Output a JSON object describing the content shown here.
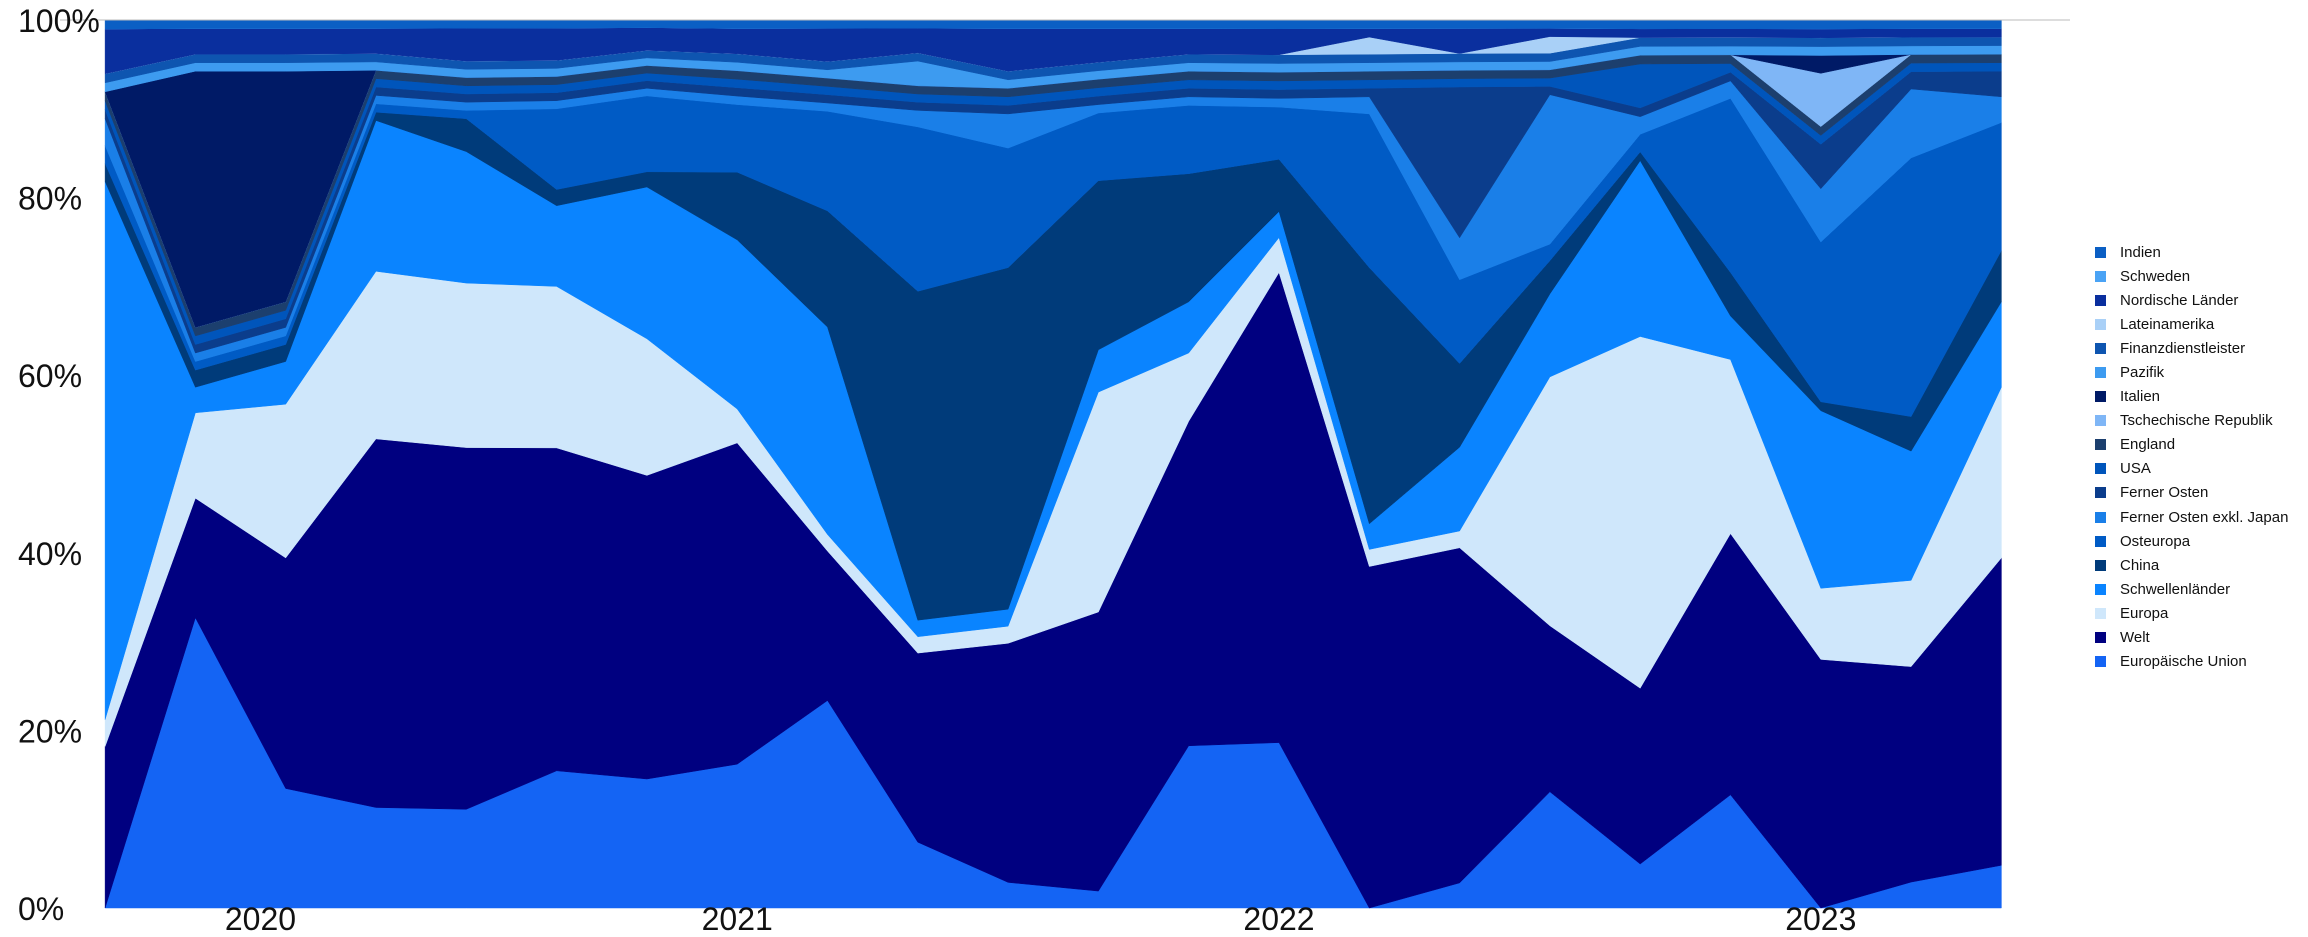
{
  "chart_data": {
    "type": "area",
    "stacked": true,
    "normalized": true,
    "x_ticks": [
      "2020",
      "2021",
      "2022",
      "2023"
    ],
    "y_ticks": [
      "0%",
      "20%",
      "40%",
      "60%",
      "80%",
      "100%"
    ],
    "ylim": [
      0,
      100
    ],
    "grid": false,
    "legend_position": "right",
    "x": [
      "2019-11",
      "2020-01",
      "2020-03",
      "2020-05",
      "2020-07",
      "2020-09",
      "2020-11",
      "2021-01",
      "2021-03",
      "2021-05",
      "2021-07",
      "2021-09",
      "2021-11",
      "2022-01",
      "2022-03",
      "2022-05",
      "2022-07",
      "2022-09",
      "2022-11",
      "2023-01",
      "2023-03",
      "2023-05"
    ],
    "series": [
      {
        "name": "Europäische Union",
        "color": "#1464f4",
        "values": [
          0,
          34,
          14,
          12,
          12,
          17,
          17,
          17,
          25,
          8,
          3,
          2,
          19,
          19,
          0,
          3,
          14,
          5,
          13,
          0,
          3,
          5
        ]
      },
      {
        "name": "Welt",
        "color": "#000080",
        "values": [
          18,
          14,
          27,
          44,
          44,
          40,
          40,
          38,
          18,
          23,
          28,
          33,
          38,
          54,
          40,
          40,
          20,
          20,
          30,
          28,
          25,
          36
        ]
      },
      {
        "name": "Europa",
        "color": "#cfe7fb",
        "values": [
          3,
          10,
          18,
          20,
          20,
          20,
          18,
          4,
          2,
          2,
          2,
          26,
          8,
          4,
          2,
          2,
          30,
          40,
          20,
          8,
          10,
          20
        ]
      },
      {
        "name": "Schwellenländer",
        "color": "#0a84ff",
        "values": [
          60,
          3,
          5,
          18,
          16,
          10,
          20,
          20,
          25,
          2,
          2,
          5,
          6,
          3,
          3,
          10,
          10,
          20,
          5,
          20,
          15,
          10
        ]
      },
      {
        "name": "China",
        "color": "#003b7a",
        "values": [
          2,
          2,
          2,
          1,
          4,
          2,
          2,
          8,
          14,
          40,
          40,
          20,
          15,
          6,
          30,
          10,
          4,
          1,
          5,
          1,
          4,
          6
        ]
      },
      {
        "name": "Osteuropa",
        "color": "#005bc5",
        "values": [
          2,
          1,
          1,
          1,
          1,
          10,
          10,
          8,
          12,
          20,
          14,
          8,
          8,
          6,
          18,
          10,
          2,
          2,
          20,
          18,
          30,
          15
        ]
      },
      {
        "name": "Ferner Osten exkl. Japan",
        "color": "#1a7fe8",
        "values": [
          3,
          1,
          1,
          1,
          1,
          1,
          1,
          1,
          1,
          2,
          4,
          1,
          1,
          1,
          2,
          5,
          18,
          2,
          2,
          6,
          8,
          3
        ]
      },
      {
        "name": "Ferner Osten",
        "color": "#0b3d8c",
        "values": [
          1,
          1,
          1,
          1,
          1,
          1,
          1,
          1,
          1,
          1,
          1,
          1,
          1,
          1,
          1,
          18,
          1,
          1,
          1,
          5,
          2,
          3
        ]
      },
      {
        "name": "USA",
        "color": "#0055bb",
        "values": [
          1,
          1,
          1,
          1,
          1,
          1,
          1,
          1,
          1,
          1,
          1,
          1,
          1,
          1,
          1,
          1,
          1,
          5,
          1,
          1,
          1,
          1
        ]
      },
      {
        "name": "England",
        "color": "#1c3f6e",
        "values": [
          1,
          1,
          1,
          1,
          1,
          1,
          1,
          1,
          1,
          1,
          1,
          1,
          1,
          1,
          1,
          1,
          1,
          1,
          1,
          1,
          1,
          1
        ]
      },
      {
        "name": "Tschechische Republik",
        "color": "#7fb6f6",
        "values": [
          0,
          0,
          0,
          0,
          0,
          0,
          0,
          0,
          0,
          0,
          0,
          0,
          0,
          0,
          0,
          0,
          0,
          0,
          0,
          6,
          0,
          0
        ]
      },
      {
        "name": "Italien",
        "color": "#001a66",
        "values": [
          0,
          30,
          27,
          0,
          0,
          0,
          0,
          0,
          0,
          0,
          0,
          0,
          0,
          0,
          0,
          0,
          0,
          0,
          0,
          2,
          0,
          0
        ]
      },
      {
        "name": "Pazifik",
        "color": "#3d9bf0",
        "values": [
          1,
          1,
          1,
          1,
          1,
          1,
          1,
          1,
          1,
          3,
          1,
          1,
          1,
          1,
          1,
          1,
          1,
          1,
          1,
          1,
          1,
          1
        ]
      },
      {
        "name": "Finanzdienstleister",
        "color": "#0e55b0",
        "values": [
          1,
          1,
          1,
          1,
          1,
          1,
          1,
          1,
          1,
          1,
          1,
          1,
          1,
          1,
          1,
          1,
          1,
          1,
          1,
          1,
          1,
          1
        ]
      },
      {
        "name": "Lateinamerika",
        "color": "#a9d0f7",
        "values": [
          0,
          0,
          0,
          0,
          0,
          0,
          0,
          0,
          0,
          0,
          0,
          0,
          0,
          0,
          2,
          0,
          2,
          0,
          0,
          0,
          0,
          0
        ]
      },
      {
        "name": "Nordische Länder",
        "color": "#0a2f9e",
        "values": [
          5,
          3,
          3,
          3,
          4,
          4,
          3,
          3,
          4,
          3,
          5,
          4,
          3,
          3,
          1,
          3,
          1,
          1,
          1,
          1,
          1,
          1
        ]
      },
      {
        "name": "Schweden",
        "color": "#4aa3f5",
        "values": [
          0,
          0,
          0,
          0,
          0,
          0,
          0,
          0,
          0,
          0,
          0,
          0,
          0,
          0,
          0,
          0,
          0,
          0,
          0,
          0,
          0,
          0
        ]
      },
      {
        "name": "Indien",
        "color": "#0b5fc4",
        "values": [
          1,
          1,
          1,
          1,
          1,
          1,
          1,
          1,
          1,
          1,
          1,
          1,
          1,
          1,
          1,
          1,
          1,
          1,
          1,
          1,
          1,
          1
        ]
      }
    ]
  }
}
